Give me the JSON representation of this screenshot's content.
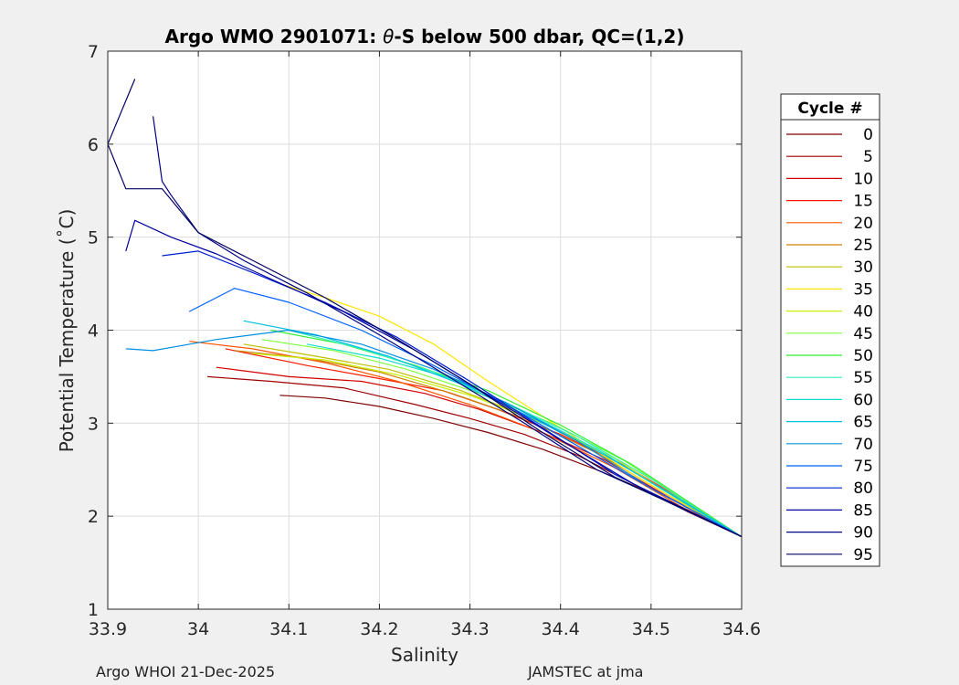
{
  "chart_data": {
    "type": "line",
    "title_main": "Argo WMO 2901071: ",
    "title_theta": "θ",
    "title_rest": "-S below 500 dbar,  QC=(1,2)",
    "xlabel": "Salinity",
    "ylabel": "Potential Temperature (˚C)",
    "xlim": [
      33.9,
      34.6
    ],
    "ylim": [
      1,
      7
    ],
    "xticks": [
      {
        "value": 33.9,
        "label": "33.9"
      },
      {
        "value": 34.0,
        "label": "34"
      },
      {
        "value": 34.1,
        "label": "34.1"
      },
      {
        "value": 34.2,
        "label": "34.2"
      },
      {
        "value": 34.3,
        "label": "34.3"
      },
      {
        "value": 34.4,
        "label": "34.4"
      },
      {
        "value": 34.5,
        "label": "34.5"
      },
      {
        "value": 34.6,
        "label": "34.6"
      }
    ],
    "yticks": [
      {
        "value": 1,
        "label": "1"
      },
      {
        "value": 2,
        "label": "2"
      },
      {
        "value": 3,
        "label": "3"
      },
      {
        "value": 4,
        "label": "4"
      },
      {
        "value": 5,
        "label": "5"
      },
      {
        "value": 6,
        "label": "6"
      },
      {
        "value": 7,
        "label": "7"
      }
    ],
    "grid": true,
    "legend_title": "Cycle #",
    "legend_position": "right",
    "legend": [
      {
        "label": "0",
        "color": "#7f0000"
      },
      {
        "label": "5",
        "color": "#a00000"
      },
      {
        "label": "10",
        "color": "#d40000"
      },
      {
        "label": "15",
        "color": "#ff1a00"
      },
      {
        "label": "20",
        "color": "#ff5500"
      },
      {
        "label": "25",
        "color": "#cc8000"
      },
      {
        "label": "30",
        "color": "#bfbf00"
      },
      {
        "label": "35",
        "color": "#ffe600"
      },
      {
        "label": "40",
        "color": "#c8f000"
      },
      {
        "label": "45",
        "color": "#80ff40"
      },
      {
        "label": "50",
        "color": "#33ee33"
      },
      {
        "label": "55",
        "color": "#33eebb"
      },
      {
        "label": "60",
        "color": "#11ddcc"
      },
      {
        "label": "65",
        "color": "#00c0e0"
      },
      {
        "label": "70",
        "color": "#0090e0"
      },
      {
        "label": "75",
        "color": "#0060ff"
      },
      {
        "label": "80",
        "color": "#0020d0"
      },
      {
        "label": "85",
        "color": "#0000a0"
      },
      {
        "label": "90",
        "color": "#000080"
      },
      {
        "label": "95",
        "color": "#000060"
      }
    ],
    "series": [
      {
        "name": "0",
        "color": "#7f0000",
        "x": [
          34.09,
          34.14,
          34.2,
          34.26,
          34.32,
          34.38,
          34.44,
          34.5,
          34.56,
          34.6
        ],
        "y": [
          3.3,
          3.27,
          3.18,
          3.05,
          2.9,
          2.72,
          2.5,
          2.25,
          1.98,
          1.78
        ]
      },
      {
        "name": "5",
        "color": "#a00000",
        "x": [
          34.01,
          34.08,
          34.16,
          34.24,
          34.3,
          34.36,
          34.42,
          34.48,
          34.54,
          34.6
        ],
        "y": [
          3.5,
          3.45,
          3.38,
          3.2,
          3.05,
          2.88,
          2.65,
          2.35,
          2.05,
          1.78
        ]
      },
      {
        "name": "10",
        "color": "#d40000",
        "x": [
          34.02,
          34.1,
          34.18,
          34.25,
          34.31,
          34.38,
          34.45,
          34.52,
          34.6
        ],
        "y": [
          3.6,
          3.5,
          3.45,
          3.32,
          3.15,
          2.9,
          2.6,
          2.2,
          1.78
        ]
      },
      {
        "name": "15",
        "color": "#ff1a00",
        "x": [
          34.03,
          34.12,
          34.2,
          34.27,
          34.33,
          34.4,
          34.47,
          34.54,
          34.6
        ],
        "y": [
          3.8,
          3.62,
          3.48,
          3.35,
          3.15,
          2.88,
          2.55,
          2.15,
          1.78
        ]
      },
      {
        "name": "20",
        "color": "#ff5500",
        "x": [
          33.99,
          34.06,
          34.14,
          34.22,
          34.3,
          34.38,
          34.46,
          34.53,
          34.6
        ],
        "y": [
          3.88,
          3.8,
          3.65,
          3.45,
          3.2,
          2.9,
          2.52,
          2.12,
          1.78
        ]
      },
      {
        "name": "25",
        "color": "#cc8000",
        "x": [
          34.04,
          34.12,
          34.2,
          34.28,
          34.36,
          34.44,
          34.52,
          34.6
        ],
        "y": [
          3.78,
          3.7,
          3.55,
          3.32,
          3.05,
          2.68,
          2.22,
          1.78
        ]
      },
      {
        "name": "30",
        "color": "#bfbf00",
        "x": [
          34.05,
          34.13,
          34.21,
          34.29,
          34.37,
          34.45,
          34.53,
          34.6
        ],
        "y": [
          3.85,
          3.72,
          3.58,
          3.35,
          3.05,
          2.65,
          2.2,
          1.78
        ]
      },
      {
        "name": "35",
        "color": "#ffe600",
        "x": [
          34.09,
          34.14,
          34.2,
          34.26,
          34.32,
          34.4,
          34.48,
          34.55,
          34.6
        ],
        "y": [
          4.5,
          4.35,
          4.15,
          3.85,
          3.45,
          2.95,
          2.45,
          2.05,
          1.78
        ]
      },
      {
        "name": "40",
        "color": "#c8f000",
        "x": [
          34.06,
          34.14,
          34.22,
          34.3,
          34.38,
          34.46,
          34.53,
          34.6
        ],
        "y": [
          3.75,
          3.68,
          3.52,
          3.3,
          3.0,
          2.62,
          2.18,
          1.78
        ]
      },
      {
        "name": "45",
        "color": "#80ff40",
        "x": [
          34.07,
          34.15,
          34.23,
          34.31,
          34.39,
          34.47,
          34.54,
          34.6
        ],
        "y": [
          3.9,
          3.78,
          3.58,
          3.32,
          3.0,
          2.6,
          2.15,
          1.78
        ]
      },
      {
        "name": "50",
        "color": "#33ee33",
        "x": [
          34.08,
          34.16,
          34.24,
          34.32,
          34.4,
          34.48,
          34.55,
          34.6
        ],
        "y": [
          4.0,
          3.85,
          3.62,
          3.35,
          2.98,
          2.55,
          2.1,
          1.78
        ]
      },
      {
        "name": "55",
        "color": "#33eebb",
        "x": [
          34.1,
          34.18,
          34.26,
          34.34,
          34.42,
          34.5,
          34.56,
          34.6
        ],
        "y": [
          4.0,
          3.8,
          3.55,
          3.22,
          2.85,
          2.4,
          2.02,
          1.78
        ]
      },
      {
        "name": "60",
        "color": "#11ddcc",
        "x": [
          34.12,
          34.2,
          34.28,
          34.36,
          34.44,
          34.51,
          34.57,
          34.6
        ],
        "y": [
          3.85,
          3.7,
          3.48,
          3.12,
          2.72,
          2.3,
          1.95,
          1.78
        ]
      },
      {
        "name": "65",
        "color": "#00c0e0",
        "x": [
          34.05,
          34.13,
          34.21,
          34.29,
          34.37,
          34.45,
          34.52,
          34.6
        ],
        "y": [
          4.1,
          3.95,
          3.72,
          3.42,
          3.05,
          2.65,
          2.25,
          1.78
        ]
      },
      {
        "name": "70",
        "color": "#0090e0",
        "x": [
          33.92,
          33.95,
          34.02,
          34.1,
          34.18,
          34.26,
          34.34,
          34.42,
          34.5,
          34.6
        ],
        "y": [
          3.8,
          3.78,
          3.9,
          4.0,
          3.85,
          3.58,
          3.22,
          2.8,
          2.3,
          1.78
        ]
      },
      {
        "name": "75",
        "color": "#0060ff",
        "x": [
          33.99,
          34.04,
          34.1,
          34.18,
          34.26,
          34.34,
          34.42,
          34.5,
          34.6
        ],
        "y": [
          4.2,
          4.45,
          4.3,
          4.0,
          3.62,
          3.2,
          2.75,
          2.3,
          1.78
        ]
      },
      {
        "name": "80",
        "color": "#0020d0",
        "x": [
          33.96,
          34.0,
          34.06,
          34.14,
          34.22,
          34.3,
          34.38,
          34.46,
          34.53,
          34.6
        ],
        "y": [
          4.8,
          4.85,
          4.62,
          4.3,
          3.92,
          3.45,
          2.95,
          2.45,
          2.1,
          1.78
        ]
      },
      {
        "name": "85",
        "color": "#0000a0",
        "x": [
          33.92,
          33.93,
          33.97,
          34.02,
          34.08,
          34.16,
          34.24,
          34.32,
          34.4,
          34.48,
          34.6
        ],
        "y": [
          4.85,
          5.18,
          5.0,
          4.82,
          4.55,
          4.2,
          3.78,
          3.3,
          2.82,
          2.35,
          1.78
        ]
      },
      {
        "name": "90",
        "color": "#000080",
        "x": [
          33.95,
          33.96,
          33.97,
          34.0,
          34.05,
          34.12,
          34.2,
          34.28,
          34.36,
          34.44,
          34.52,
          34.6
        ],
        "y": [
          6.3,
          5.6,
          5.45,
          5.05,
          4.75,
          4.4,
          3.95,
          3.48,
          3.0,
          2.5,
          2.15,
          1.78
        ]
      },
      {
        "name": "95",
        "color": "#000060",
        "x": [
          33.93,
          33.9,
          33.92,
          33.96,
          34.0,
          34.06,
          34.14,
          34.22,
          34.3,
          34.38,
          34.46,
          34.53,
          34.6
        ],
        "y": [
          6.7,
          6.0,
          5.52,
          5.52,
          5.05,
          4.75,
          4.35,
          3.9,
          3.42,
          2.9,
          2.42,
          2.1,
          1.78
        ]
      }
    ]
  },
  "footer": {
    "left": "Argo WHOI 21-Dec-2025",
    "right": "JAMSTEC at jma"
  }
}
